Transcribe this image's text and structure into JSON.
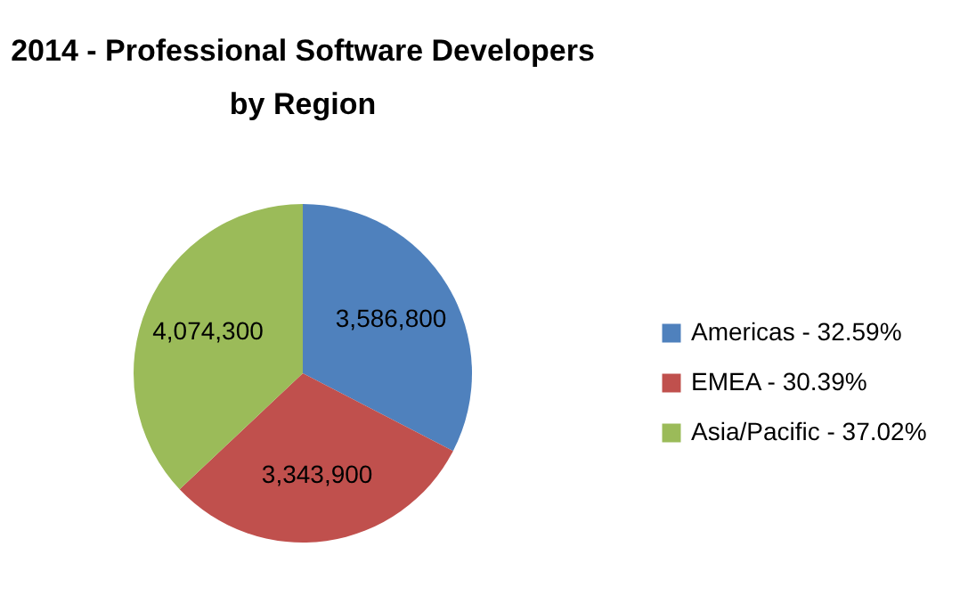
{
  "chart_data": {
    "type": "pie",
    "title": "2014 - Professional Software Developers by Region",
    "categories": [
      "Americas - 32.59%",
      "EMEA - 30.39%",
      "Asia/Pacific - 37.02%"
    ],
    "values": [
      3586800,
      3343900,
      4074300
    ],
    "value_labels": [
      "3,586,800",
      "3,343,900",
      "4,074,300"
    ],
    "colors": [
      "#4f81bd",
      "#c0504d",
      "#9bbb59"
    ],
    "legend": "right"
  }
}
